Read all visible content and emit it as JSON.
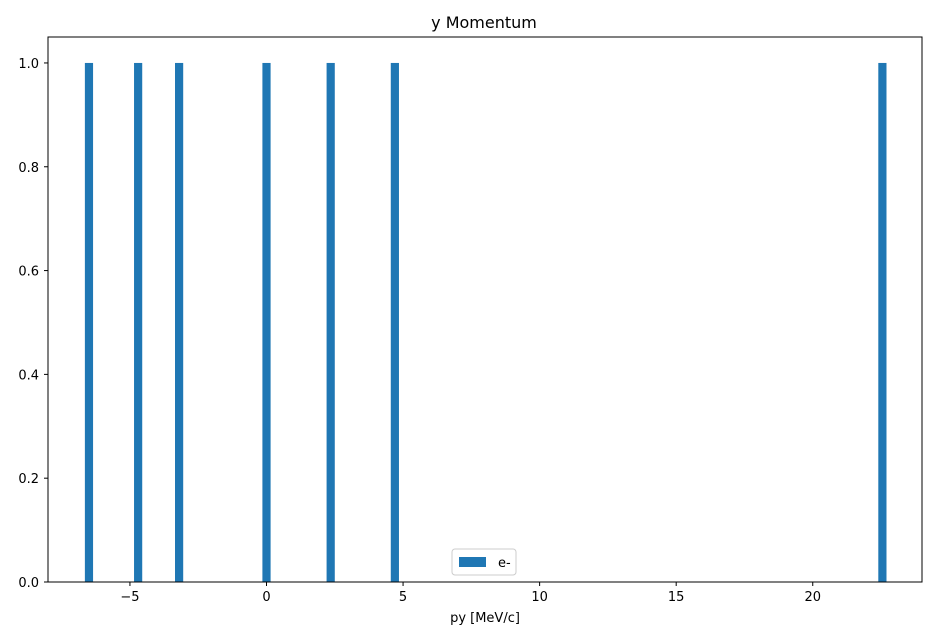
{
  "chart_data": {
    "type": "bar",
    "title": "y Momentum",
    "xlabel": "py [MeV/c]",
    "ylabel": "",
    "xlim": [
      -8.0,
      24.0
    ],
    "ylim": [
      0.0,
      1.05
    ],
    "x_ticks": [
      -5,
      0,
      5,
      10,
      15,
      20
    ],
    "x_tick_labels": [
      "−5",
      "0",
      "5",
      "10",
      "15",
      "20"
    ],
    "y_ticks": [
      0.0,
      0.2,
      0.4,
      0.6,
      0.8,
      1.0
    ],
    "y_tick_labels": [
      "0.0",
      "0.2",
      "0.4",
      "0.6",
      "0.8",
      "1.0"
    ],
    "series": [
      {
        "name": "e-",
        "color": "#1f77b4",
        "bin_width": 0.3,
        "x": [
          -6.5,
          -4.7,
          -3.2,
          0.0,
          2.35,
          4.7,
          22.55
        ],
        "values": [
          1,
          1,
          1,
          1,
          1,
          1,
          1
        ]
      }
    ],
    "legend": {
      "placement": "lower-center",
      "entries": [
        "e-"
      ]
    },
    "grid": false
  }
}
